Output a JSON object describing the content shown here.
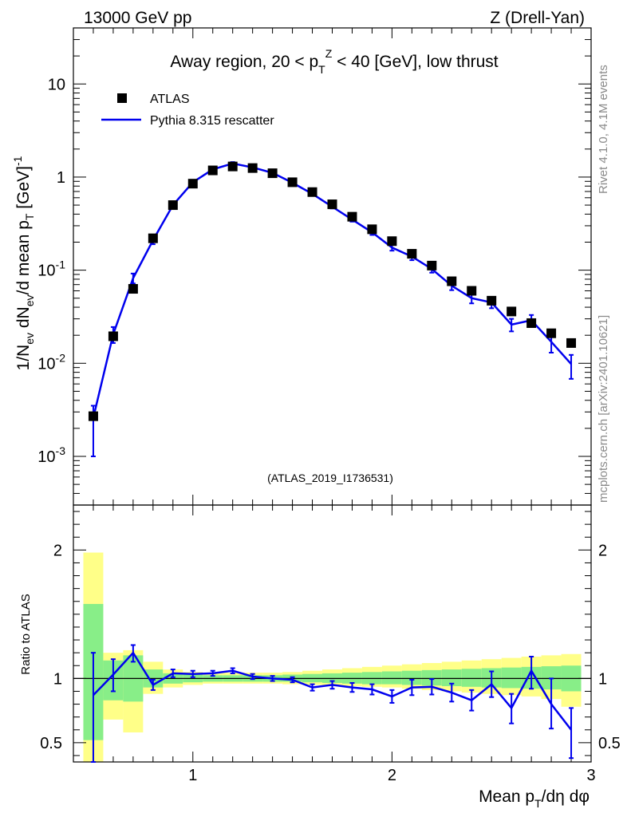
{
  "header": {
    "left": "13000 GeV pp",
    "right": "Z (Drell-Yan)"
  },
  "side_labels": {
    "rivet": "Rivet 4.1.0,  4.1M events",
    "mcplots": "mcplots.cern.ch [arXiv:2401.10621]"
  },
  "legend": {
    "data": "ATLAS",
    "mc": "Pythia 8.315 rescatter"
  },
  "colors": {
    "mc_line": "#0000ee",
    "band_outer": "#ffff88",
    "band_inner": "#88ee88",
    "data_marker": "#000000"
  },
  "chart_data": [
    {
      "type": "line",
      "title": "Away region, 20 < p_T^Z < 40 [GeV], low thrust",
      "analysis_id": "(ATLAS_2019_I1736531)",
      "xlabel": "Mean p_T/dη dφ",
      "ylabel": "1/N_ev dN_ev/d mean p_T [GeV]^-1",
      "yscale": "log",
      "xlim": [
        0.4,
        3.0
      ],
      "ylim": [
        0.0003,
        40
      ],
      "yticks": [
        {
          "value": 0.001,
          "label": "10^-3"
        },
        {
          "value": 0.01,
          "label": "10^-2"
        },
        {
          "value": 0.1,
          "label": "10^-1"
        },
        {
          "value": 1,
          "label": "1"
        },
        {
          "value": 10,
          "label": "10"
        }
      ],
      "series": [
        {
          "name": "ATLAS",
          "marker": "square",
          "x": [
            0.5,
            0.6,
            0.7,
            0.8,
            0.9,
            1.0,
            1.1,
            1.2,
            1.3,
            1.4,
            1.5,
            1.6,
            1.7,
            1.8,
            1.9,
            2.0,
            2.1,
            2.2,
            2.3,
            2.4,
            2.5,
            2.6,
            2.7,
            2.8,
            2.9
          ],
          "values": [
            0.0027,
            0.0195,
            0.063,
            0.22,
            0.5,
            0.85,
            1.18,
            1.3,
            1.25,
            1.1,
            0.88,
            0.69,
            0.51,
            0.375,
            0.275,
            0.205,
            0.15,
            0.112,
            0.076,
            0.06,
            0.047,
            0.036,
            0.027,
            0.021,
            0.0165
          ]
        },
        {
          "name": "Pythia 8.315 rescatter",
          "x": [
            0.5,
            0.6,
            0.7,
            0.8,
            0.9,
            1.0,
            1.1,
            1.2,
            1.3,
            1.4,
            1.5,
            1.6,
            1.7,
            1.8,
            1.9,
            2.0,
            2.1,
            2.2,
            2.3,
            2.4,
            2.5,
            2.6,
            2.7,
            2.8,
            2.9
          ],
          "values": [
            0.0026,
            0.0205,
            0.082,
            0.21,
            0.5,
            0.88,
            1.21,
            1.4,
            1.27,
            1.11,
            0.87,
            0.66,
            0.48,
            0.35,
            0.255,
            0.175,
            0.14,
            0.103,
            0.068,
            0.05,
            0.045,
            0.026,
            0.029,
            0.017,
            0.0098
          ],
          "err_low": [
            0.0016,
            0.004,
            0.01,
            0.02,
            0.03,
            0.04,
            0.05,
            0.05,
            0.05,
            0.04,
            0.03,
            0.025,
            0.02,
            0.018,
            0.016,
            0.013,
            0.012,
            0.009,
            0.007,
            0.006,
            0.006,
            0.004,
            0.004,
            0.004,
            0.003
          ],
          "err_high": [
            0.0009,
            0.004,
            0.01,
            0.02,
            0.03,
            0.04,
            0.05,
            0.05,
            0.05,
            0.04,
            0.03,
            0.025,
            0.02,
            0.018,
            0.016,
            0.013,
            0.012,
            0.009,
            0.007,
            0.006,
            0.006,
            0.004,
            0.004,
            0.004,
            0.0025
          ]
        }
      ]
    },
    {
      "type": "line",
      "ylabel": "Ratio to ATLAS",
      "xlabel": "Mean p_T/dη dφ",
      "xlim": [
        0.4,
        3.0
      ],
      "ylim": [
        0.35,
        2.35
      ],
      "yticks": [
        {
          "value": 0.5,
          "label": "0.5"
        },
        {
          "value": 1,
          "label": "1"
        },
        {
          "value": 2,
          "label": "2"
        }
      ],
      "xticks": [
        {
          "value": 1,
          "label": "1"
        },
        {
          "value": 2,
          "label": "2"
        },
        {
          "value": 3,
          "label": "3"
        }
      ],
      "bands": {
        "bin_edges": [
          0.45,
          0.55,
          0.65,
          0.75,
          0.85,
          0.95,
          1.05,
          1.15,
          1.25,
          1.35,
          1.45,
          1.55,
          1.65,
          1.75,
          1.85,
          1.95,
          2.05,
          2.15,
          2.25,
          2.35,
          2.45,
          2.55,
          2.65,
          2.75,
          2.85,
          2.95
        ],
        "outer_low": [
          0.3,
          0.68,
          0.58,
          0.88,
          0.93,
          0.95,
          0.96,
          0.96,
          0.96,
          0.96,
          0.955,
          0.95,
          0.945,
          0.94,
          0.935,
          0.93,
          0.92,
          0.91,
          0.9,
          0.89,
          0.88,
          0.87,
          0.86,
          0.84,
          0.78
        ],
        "outer_high": [
          1.98,
          1.2,
          1.22,
          1.13,
          1.07,
          1.05,
          1.045,
          1.045,
          1.045,
          1.045,
          1.05,
          1.06,
          1.07,
          1.08,
          1.09,
          1.1,
          1.11,
          1.12,
          1.13,
          1.14,
          1.15,
          1.16,
          1.17,
          1.18,
          1.19
        ],
        "inner_low": [
          0.52,
          0.83,
          0.82,
          0.93,
          0.96,
          0.97,
          0.975,
          0.975,
          0.975,
          0.975,
          0.975,
          0.97,
          0.965,
          0.96,
          0.955,
          0.955,
          0.95,
          0.945,
          0.94,
          0.935,
          0.93,
          0.925,
          0.92,
          0.915,
          0.9
        ],
        "inner_high": [
          1.58,
          1.14,
          1.18,
          1.07,
          1.04,
          1.03,
          1.025,
          1.025,
          1.025,
          1.025,
          1.03,
          1.035,
          1.04,
          1.045,
          1.05,
          1.055,
          1.06,
          1.065,
          1.07,
          1.075,
          1.08,
          1.085,
          1.09,
          1.095,
          1.1
        ]
      },
      "series": [
        {
          "name": "Pythia 8.315 rescatter / ATLAS",
          "x": [
            0.5,
            0.6,
            0.7,
            0.8,
            0.9,
            1.0,
            1.1,
            1.2,
            1.3,
            1.4,
            1.5,
            1.6,
            1.7,
            1.8,
            1.9,
            2.0,
            2.1,
            2.2,
            2.3,
            2.4,
            2.5,
            2.6,
            2.7,
            2.8,
            2.9
          ],
          "values": [
            0.87,
            1.03,
            1.2,
            0.95,
            1.04,
            1.035,
            1.04,
            1.06,
            1.015,
            1.0,
            0.99,
            0.93,
            0.95,
            0.93,
            0.915,
            0.86,
            0.93,
            0.935,
            0.89,
            0.83,
            0.955,
            0.77,
            1.06,
            0.8,
            0.6
          ],
          "err_low": [
            0.55,
            0.13,
            0.07,
            0.04,
            0.03,
            0.025,
            0.02,
            0.02,
            0.02,
            0.02,
            0.02,
            0.025,
            0.03,
            0.035,
            0.04,
            0.05,
            0.06,
            0.06,
            0.07,
            0.08,
            0.1,
            0.12,
            0.14,
            0.19,
            0.22
          ],
          "err_high": [
            0.33,
            0.12,
            0.06,
            0.04,
            0.03,
            0.025,
            0.02,
            0.02,
            0.02,
            0.02,
            0.02,
            0.025,
            0.03,
            0.035,
            0.04,
            0.05,
            0.06,
            0.06,
            0.07,
            0.08,
            0.1,
            0.11,
            0.11,
            0.2,
            0.17
          ]
        }
      ]
    }
  ]
}
